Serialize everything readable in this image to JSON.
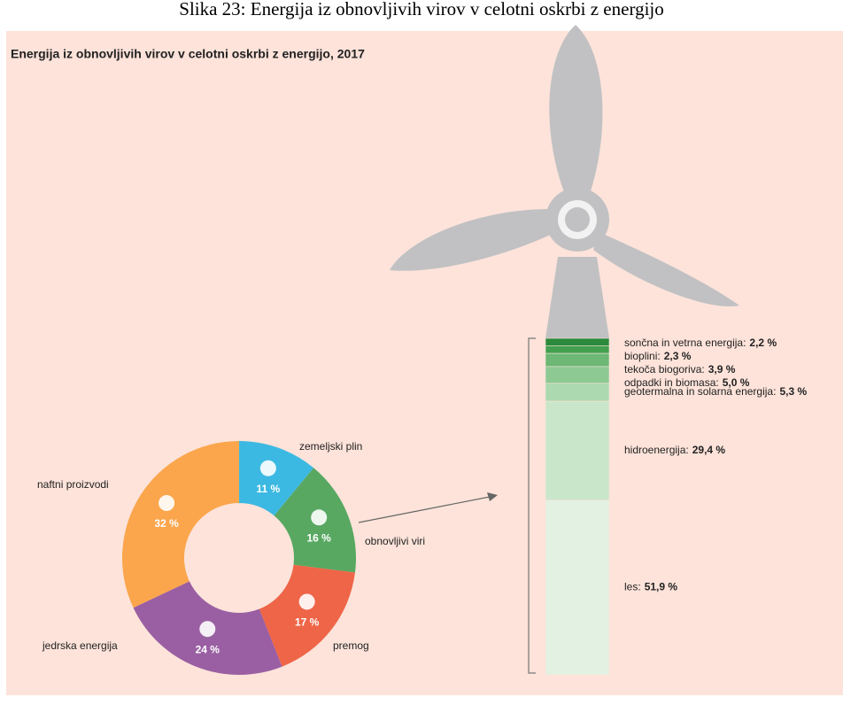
{
  "caption": "Slika 23: Energija iz obnovljivih virov v celotni oskrbi z energijo",
  "chart_data": [
    {
      "type": "pie",
      "title": "Energija iz obnovljivih virov v celotni oskrbi z energijo, 2017",
      "categories": [
        "zemeljski plin",
        "obnovljivi viri",
        "premog",
        "jedrska energija",
        "naftni proizvodi"
      ],
      "values": [
        11,
        16,
        17,
        24,
        32
      ],
      "value_labels": [
        "11 %",
        "16 %",
        "17 %",
        "24 %",
        "32 %"
      ],
      "colors": [
        "#3cb9e2",
        "#58a862",
        "#ef6547",
        "#9a5fa3",
        "#fba64c"
      ]
    },
    {
      "type": "bar",
      "stacked": true,
      "categories": [
        "sončna in vetrna energija:",
        "bioplini:",
        "tekoča biogoriva:",
        "odpadki in biomasa:",
        "geotermalna in solarna energija:",
        "hidroenergija:",
        "les:"
      ],
      "values": [
        2.2,
        2.3,
        3.9,
        5.0,
        5.3,
        29.4,
        51.9
      ],
      "value_labels": [
        "2,2 %",
        "2,3 %",
        "3,9 %",
        "5,0 %",
        "5,3 %",
        "29,4 %",
        "51,9 %"
      ],
      "colors": [
        "#2b8a3b",
        "#43a04f",
        "#6cb874",
        "#8dc993",
        "#acd9af",
        "#c9e6cb",
        "#e3f1e3"
      ]
    }
  ]
}
